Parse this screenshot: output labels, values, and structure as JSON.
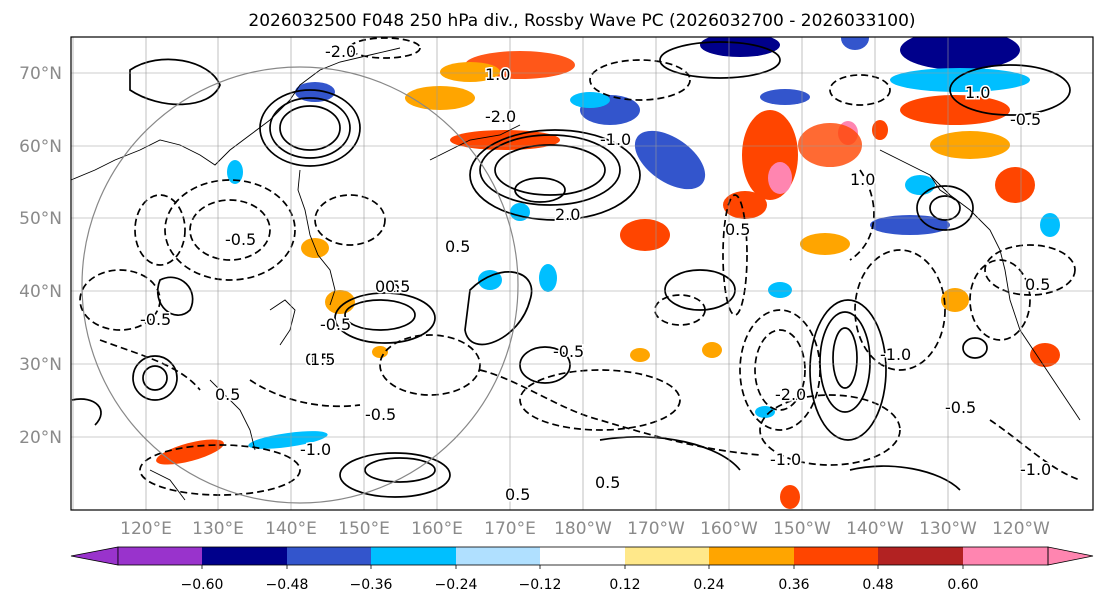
{
  "title": "2026032500 F048 250 hPa div., Rossby Wave PC (2026032700 - 2026033100)",
  "map": {
    "lat_labels": [
      "70°N",
      "60°N",
      "50°N",
      "40°N",
      "30°N",
      "20°N"
    ],
    "lon_labels": [
      "120°E",
      "130°E",
      "140°E",
      "150°E",
      "160°E",
      "170°E",
      "180°W",
      "170°W",
      "160°W",
      "150°W",
      "140°W",
      "130°W",
      "120°W"
    ],
    "contour_labels": [
      "-2.0",
      "1.0",
      "-2.0",
      "1.0",
      "-0.5",
      "0.5",
      "-0.5",
      "0.5",
      "-1.0",
      "1.0",
      "2.0",
      "-0.5",
      "0.5",
      "-0.5",
      "0.5",
      "-0.5",
      "0.5",
      "-1.0",
      "0.5",
      "-0.5",
      "0.5",
      "-2.0",
      "-1.0",
      "0.5",
      "-0.5",
      "1.5",
      "-1.0",
      "0.5",
      "-1.0"
    ]
  },
  "colorbar": {
    "ticks": [
      "−0.60",
      "−0.48",
      "−0.36",
      "−0.24",
      "−0.12",
      "0.12",
      "0.24",
      "0.36",
      "0.48",
      "0.60"
    ],
    "colors": [
      "#9933cc",
      "#00008b",
      "#3355cc",
      "#00bfff",
      "#b0e0ff",
      "#ffffff",
      "#ffe88a",
      "#ffa500",
      "#ff4500",
      "#b22222",
      "#ff85b0"
    ]
  }
}
